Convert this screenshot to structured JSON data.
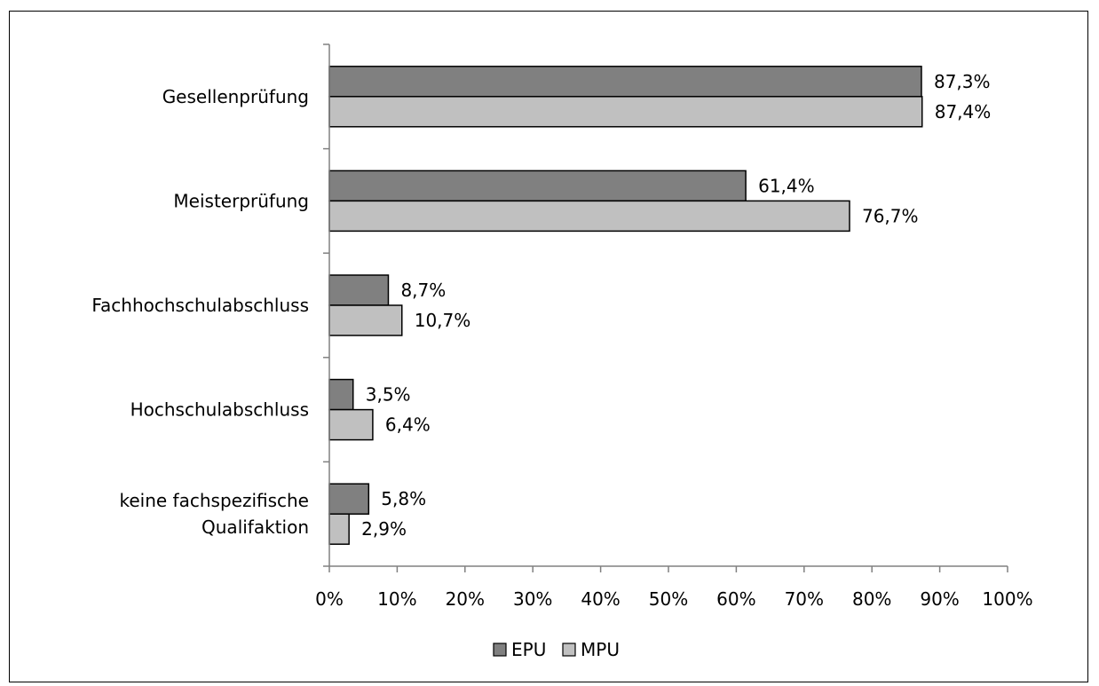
{
  "chart_data": {
    "type": "bar",
    "orientation": "horizontal",
    "categories": [
      "Gesellenprüfung",
      "Meisterprüfung",
      "Fachhochschulabschluss",
      "Hochschulabschluss",
      "keine fachspezifische Qualifaktion"
    ],
    "category_lines": [
      [
        "Gesellenprüfung"
      ],
      [
        "Meisterprüfung"
      ],
      [
        "Fachhochschulabschluss"
      ],
      [
        "Hochschulabschluss"
      ],
      [
        "keine fachspezifische",
        "Qualifaktion"
      ]
    ],
    "series": [
      {
        "name": "EPU",
        "color": "#808080",
        "values": [
          87.3,
          61.4,
          8.7,
          3.5,
          5.8
        ],
        "labels": [
          "87,3%",
          "61,4%",
          "8,7%",
          "3,5%",
          "5,8%"
        ]
      },
      {
        "name": "MPU",
        "color": "#c0c0c0",
        "values": [
          87.4,
          76.7,
          10.7,
          6.4,
          2.9
        ],
        "labels": [
          "87,4%",
          "76,7%",
          "10,7%",
          "6,4%",
          "2,9%"
        ]
      }
    ],
    "xlim": [
      0,
      100
    ],
    "xticks": [
      0,
      10,
      20,
      30,
      40,
      50,
      60,
      70,
      80,
      90,
      100
    ],
    "xtick_labels": [
      "0%",
      "10%",
      "20%",
      "30%",
      "40%",
      "50%",
      "60%",
      "70%",
      "80%",
      "90%",
      "100%"
    ],
    "title": "",
    "xlabel": "",
    "ylabel": "",
    "grid": false,
    "legend": "bottom"
  }
}
